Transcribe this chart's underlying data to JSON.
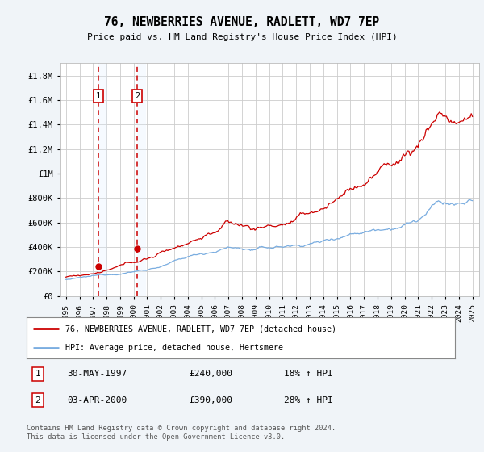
{
  "title": "76, NEWBERRIES AVENUE, RADLETT, WD7 7EP",
  "subtitle": "Price paid vs. HM Land Registry's House Price Index (HPI)",
  "xlim": [
    1994.6,
    2025.5
  ],
  "ylim": [
    0,
    1900000
  ],
  "yticks": [
    0,
    200000,
    400000,
    600000,
    800000,
    1000000,
    1200000,
    1400000,
    1600000,
    1800000
  ],
  "ytick_labels": [
    "£0",
    "£200K",
    "£400K",
    "£600K",
    "£800K",
    "£1M",
    "£1.2M",
    "£1.4M",
    "£1.6M",
    "£1.8M"
  ],
  "xtick_years": [
    1995,
    1996,
    1997,
    1998,
    1999,
    2000,
    2001,
    2002,
    2003,
    2004,
    2005,
    2006,
    2007,
    2008,
    2009,
    2010,
    2011,
    2012,
    2013,
    2014,
    2015,
    2016,
    2017,
    2018,
    2019,
    2020,
    2021,
    2022,
    2023,
    2024,
    2025
  ],
  "sale1_x": 1997.41,
  "sale1_y": 240000,
  "sale2_x": 2000.25,
  "sale2_y": 390000,
  "sale_color": "#cc0000",
  "hpi_color": "#7aade0",
  "legend_sale_label": "76, NEWBERRIES AVENUE, RADLETT, WD7 7EP (detached house)",
  "legend_hpi_label": "HPI: Average price, detached house, Hertsmere",
  "table_row1": [
    "1",
    "30-MAY-1997",
    "£240,000",
    "18% ↑ HPI"
  ],
  "table_row2": [
    "2",
    "03-APR-2000",
    "£390,000",
    "28% ↑ HPI"
  ],
  "footer": "Contains HM Land Registry data © Crown copyright and database right 2024.\nThis data is licensed under the Open Government Licence v3.0.",
  "bg_color": "#f0f4f8",
  "plot_bg_color": "#ffffff",
  "grid_color": "#cccccc",
  "shading_color": "#ddeeff"
}
